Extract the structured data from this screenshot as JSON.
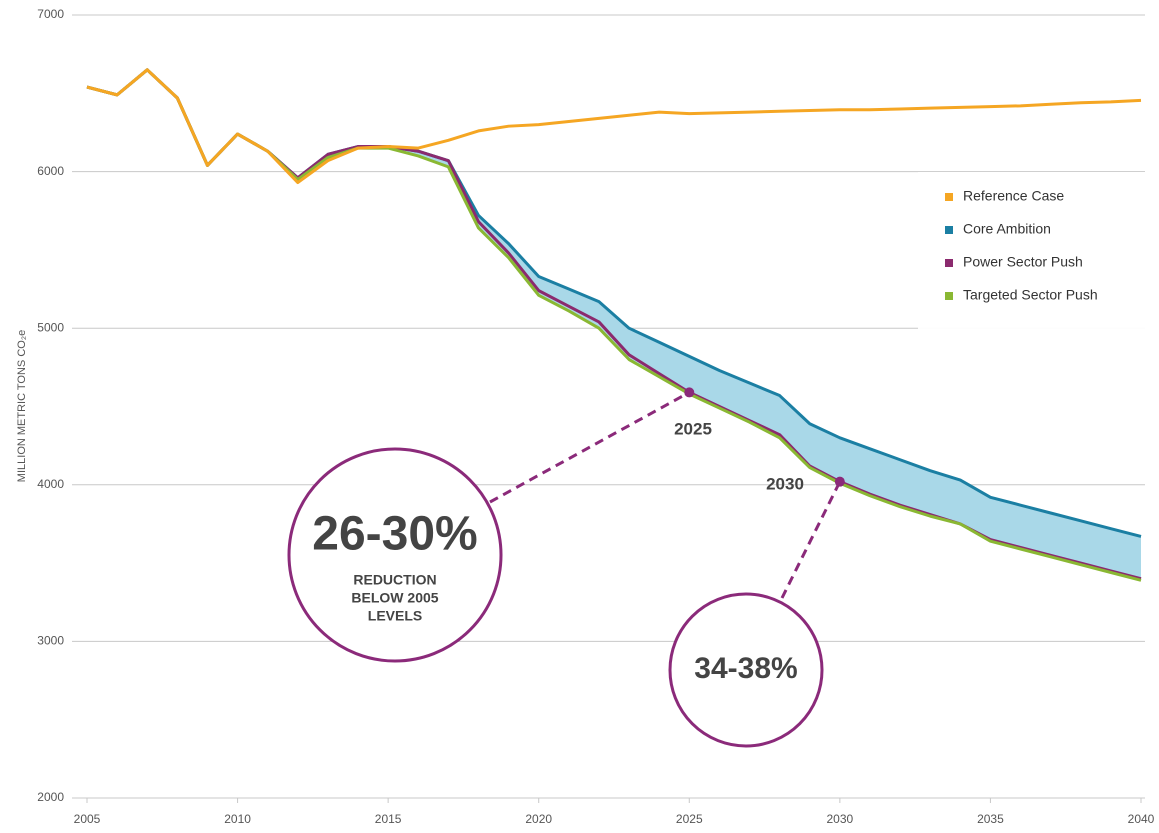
{
  "chart_data": {
    "type": "line",
    "y_label": "MILLION METRIC TONS CO₂e",
    "x": [
      2005,
      2006,
      2007,
      2008,
      2009,
      2010,
      2011,
      2012,
      2013,
      2014,
      2015,
      2016,
      2017,
      2018,
      2019,
      2020,
      2021,
      2022,
      2023,
      2024,
      2025,
      2026,
      2027,
      2028,
      2029,
      2030,
      2031,
      2032,
      2033,
      2034,
      2035,
      2036,
      2037,
      2038,
      2039,
      2040
    ],
    "xlim": [
      2005,
      2040
    ],
    "xticks": [
      2005,
      2010,
      2015,
      2020,
      2025,
      2030,
      2035,
      2040
    ],
    "ylim": [
      2000,
      7000
    ],
    "yticks": [
      2000,
      3000,
      4000,
      5000,
      6000,
      7000
    ],
    "grid": true,
    "legend": "right",
    "band_color": "#a9d8e8",
    "series": [
      {
        "name": "Reference Case",
        "color": "#f5a623",
        "values": [
          6540,
          6490,
          6650,
          6470,
          6040,
          6240,
          6130,
          5930,
          6070,
          6150,
          6160,
          6150,
          6200,
          6260,
          6290,
          6300,
          6320,
          6340,
          6360,
          6380,
          6370,
          6375,
          6380,
          6385,
          6390,
          6395,
          6395,
          6400,
          6405,
          6410,
          6415,
          6420,
          6430,
          6440,
          6445,
          6455
        ]
      },
      {
        "name": "Core Ambition",
        "color": "#1b7fa3",
        "values": [
          6540,
          6490,
          6650,
          6470,
          6040,
          6240,
          6130,
          5960,
          6110,
          6160,
          6160,
          6130,
          6070,
          5720,
          5540,
          5330,
          5250,
          5170,
          5000,
          4910,
          4820,
          4730,
          4650,
          4570,
          4390,
          4300,
          4230,
          4160,
          4090,
          4030,
          3920,
          3870,
          3820,
          3770,
          3720,
          3670
        ]
      },
      {
        "name": "Power Sector Push",
        "color": "#8b2a6e",
        "values": [
          6540,
          6490,
          6650,
          6470,
          6040,
          6240,
          6130,
          5960,
          6110,
          6160,
          6160,
          6130,
          6070,
          5680,
          5480,
          5240,
          5140,
          5040,
          4830,
          4710,
          4590,
          4500,
          4410,
          4320,
          4120,
          4020,
          3940,
          3870,
          3810,
          3750,
          3650,
          3600,
          3550,
          3500,
          3450,
          3400
        ]
      },
      {
        "name": "Targeted Sector Push",
        "color": "#8ab833",
        "values": [
          6540,
          6490,
          6650,
          6470,
          6040,
          6240,
          6130,
          5950,
          6090,
          6150,
          6150,
          6100,
          6030,
          5640,
          5450,
          5210,
          5110,
          5000,
          4800,
          4690,
          4580,
          4490,
          4400,
          4300,
          4110,
          4010,
          3930,
          3860,
          3800,
          3750,
          3640,
          3590,
          3540,
          3490,
          3440,
          3390
        ]
      }
    ],
    "annotations": [
      {
        "point_label": "2025",
        "big": "26-30%",
        "small": [
          "REDUCTION",
          "BELOW 2005",
          "LEVELS"
        ]
      },
      {
        "point_label": "2030",
        "big": "34-38%"
      }
    ]
  }
}
